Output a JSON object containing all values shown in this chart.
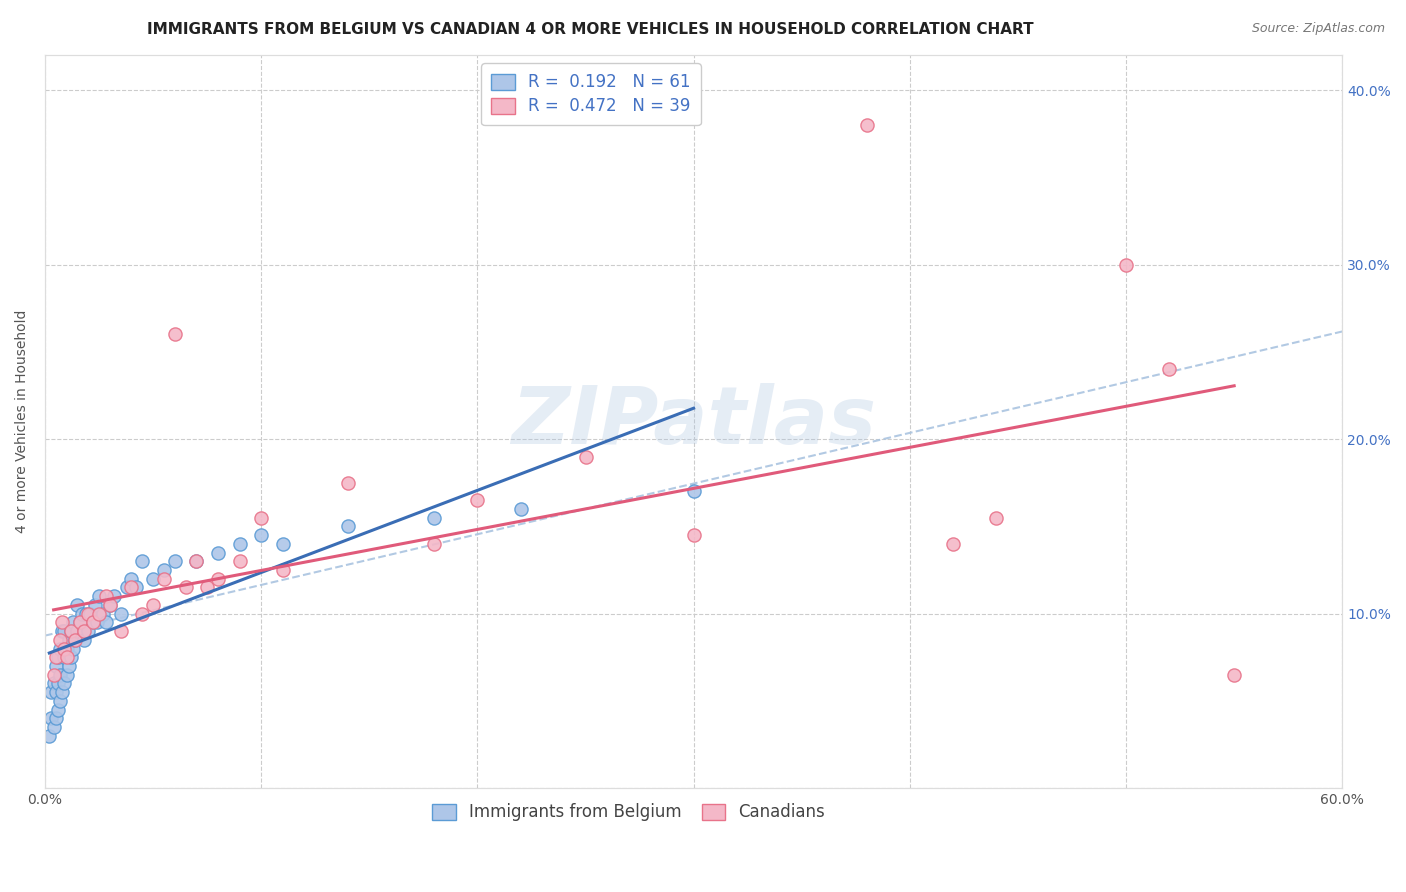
{
  "title": "IMMIGRANTS FROM BELGIUM VS CANADIAN 4 OR MORE VEHICLES IN HOUSEHOLD CORRELATION CHART",
  "source_text": "Source: ZipAtlas.com",
  "ylabel": "4 or more Vehicles in Household",
  "watermark": "ZIPatlas",
  "legend_label1": "Immigrants from Belgium",
  "legend_label2": "Canadians",
  "r1": 0.192,
  "n1": 61,
  "r2": 0.472,
  "n2": 39,
  "blue_dot_face": "#aec6e8",
  "blue_dot_edge": "#5b9bd5",
  "pink_dot_face": "#f4b8c8",
  "pink_dot_edge": "#e8738a",
  "line_blue_color": "#3a6db5",
  "line_pink_color": "#e05a7a",
  "line_dash_color": "#aac4e0",
  "xlim": [
    0.0,
    0.6
  ],
  "ylim": [
    0.0,
    0.42
  ],
  "blue_scatter_x": [
    0.002,
    0.003,
    0.003,
    0.004,
    0.004,
    0.005,
    0.005,
    0.005,
    0.006,
    0.006,
    0.006,
    0.007,
    0.007,
    0.007,
    0.008,
    0.008,
    0.009,
    0.009,
    0.009,
    0.01,
    0.01,
    0.011,
    0.011,
    0.012,
    0.012,
    0.013,
    0.013,
    0.014,
    0.015,
    0.015,
    0.016,
    0.017,
    0.018,
    0.019,
    0.02,
    0.021,
    0.022,
    0.023,
    0.024,
    0.025,
    0.027,
    0.028,
    0.03,
    0.032,
    0.035,
    0.038,
    0.04,
    0.042,
    0.045,
    0.05,
    0.055,
    0.06,
    0.07,
    0.08,
    0.09,
    0.1,
    0.11,
    0.14,
    0.18,
    0.22,
    0.3
  ],
  "blue_scatter_y": [
    0.03,
    0.04,
    0.055,
    0.035,
    0.06,
    0.04,
    0.055,
    0.07,
    0.045,
    0.06,
    0.075,
    0.05,
    0.065,
    0.08,
    0.055,
    0.09,
    0.06,
    0.075,
    0.09,
    0.065,
    0.08,
    0.07,
    0.085,
    0.075,
    0.09,
    0.08,
    0.095,
    0.085,
    0.09,
    0.105,
    0.095,
    0.1,
    0.085,
    0.1,
    0.09,
    0.1,
    0.095,
    0.105,
    0.095,
    0.11,
    0.1,
    0.095,
    0.105,
    0.11,
    0.1,
    0.115,
    0.12,
    0.115,
    0.13,
    0.12,
    0.125,
    0.13,
    0.13,
    0.135,
    0.14,
    0.145,
    0.14,
    0.15,
    0.155,
    0.16,
    0.17
  ],
  "pink_scatter_x": [
    0.004,
    0.005,
    0.007,
    0.008,
    0.009,
    0.01,
    0.012,
    0.014,
    0.016,
    0.018,
    0.02,
    0.022,
    0.025,
    0.028,
    0.03,
    0.035,
    0.04,
    0.045,
    0.05,
    0.055,
    0.06,
    0.065,
    0.07,
    0.075,
    0.08,
    0.09,
    0.1,
    0.11,
    0.14,
    0.18,
    0.2,
    0.25,
    0.3,
    0.38,
    0.42,
    0.44,
    0.5,
    0.52,
    0.55
  ],
  "pink_scatter_y": [
    0.065,
    0.075,
    0.085,
    0.095,
    0.08,
    0.075,
    0.09,
    0.085,
    0.095,
    0.09,
    0.1,
    0.095,
    0.1,
    0.11,
    0.105,
    0.09,
    0.115,
    0.1,
    0.105,
    0.12,
    0.26,
    0.115,
    0.13,
    0.115,
    0.12,
    0.13,
    0.155,
    0.125,
    0.175,
    0.14,
    0.165,
    0.19,
    0.145,
    0.38,
    0.14,
    0.155,
    0.3,
    0.24,
    0.065
  ],
  "title_fontsize": 11,
  "axis_tick_fontsize": 10,
  "legend_fontsize": 12,
  "source_fontsize": 9
}
